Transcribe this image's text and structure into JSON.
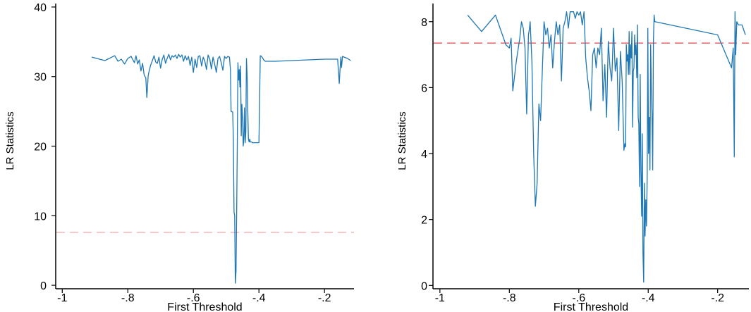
{
  "chart_data": [
    {
      "type": "line",
      "xlabel": "First Threshold",
      "ylabel": "LR Statistics",
      "xlim": [
        -1.02,
        -0.11
      ],
      "ylim": [
        -0.5,
        40.5
      ],
      "xticks": [
        -1,
        -0.8,
        -0.6,
        -0.4,
        -0.2
      ],
      "xtick_labels": [
        "-1",
        "-.8",
        "-.6",
        "-.4",
        "-.2"
      ],
      "yticks": [
        0,
        10,
        20,
        30,
        40
      ],
      "ytick_labels": [
        "0",
        "10",
        "20",
        "30",
        "40"
      ],
      "grid": false,
      "line_color": "#1f77b4",
      "critical_value": 7.6,
      "critical_color": "#f4a6a6",
      "series": [
        {
          "x": [
            -0.91,
            -0.87,
            -0.84,
            -0.83,
            -0.82,
            -0.81,
            -0.8,
            -0.79,
            -0.78,
            -0.775,
            -0.77,
            -0.765,
            -0.76,
            -0.755,
            -0.75,
            -0.745,
            -0.742,
            -0.74,
            -0.738,
            -0.735,
            -0.73,
            -0.725,
            -0.72,
            -0.715,
            -0.71,
            -0.705,
            -0.7,
            -0.695,
            -0.69,
            -0.685,
            -0.68,
            -0.675,
            -0.67,
            -0.665,
            -0.66,
            -0.655,
            -0.65,
            -0.645,
            -0.64,
            -0.635,
            -0.63,
            -0.625,
            -0.62,
            -0.615,
            -0.61,
            -0.605,
            -0.6,
            -0.595,
            -0.59,
            -0.585,
            -0.58,
            -0.575,
            -0.57,
            -0.565,
            -0.56,
            -0.555,
            -0.55,
            -0.545,
            -0.54,
            -0.535,
            -0.53,
            -0.525,
            -0.52,
            -0.515,
            -0.51,
            -0.505,
            -0.5,
            -0.495,
            -0.49,
            -0.487,
            -0.485,
            -0.48,
            -0.478,
            -0.476,
            -0.474,
            -0.472,
            -0.47,
            -0.468,
            -0.466,
            -0.464,
            -0.462,
            -0.46,
            -0.458,
            -0.456,
            -0.454,
            -0.452,
            -0.45,
            -0.448,
            -0.446,
            -0.444,
            -0.442,
            -0.44,
            -0.438,
            -0.436,
            -0.434,
            -0.432,
            -0.43,
            -0.428,
            -0.426,
            -0.424,
            -0.422,
            -0.42,
            -0.418,
            -0.416,
            -0.414,
            -0.412,
            -0.41,
            -0.408,
            -0.406,
            -0.404,
            -0.402,
            -0.4,
            -0.396,
            -0.392,
            -0.388,
            -0.384,
            -0.38,
            -0.37,
            -0.35,
            -0.3,
            -0.25,
            -0.2,
            -0.16,
            -0.155,
            -0.152,
            -0.15,
            -0.148,
            -0.145,
            -0.14,
            -0.13,
            -0.12
          ],
          "y": [
            32.8,
            32.3,
            33.0,
            32.2,
            32.5,
            31.8,
            32.6,
            32.9,
            32.0,
            33.0,
            31.8,
            32.4,
            30.8,
            31.9,
            30.2,
            29.8,
            27.0,
            28.5,
            30.1,
            30.8,
            31.7,
            32.3,
            33.0,
            32.1,
            31.9,
            32.8,
            31.2,
            32.5,
            33.1,
            31.9,
            32.6,
            33.2,
            32.4,
            33.0,
            32.8,
            33.1,
            32.6,
            33.2,
            32.8,
            33.1,
            32.2,
            33.0,
            32.4,
            32.9,
            31.6,
            32.8,
            30.6,
            32.5,
            31.3,
            32.9,
            33.0,
            31.5,
            32.8,
            32.2,
            31.0,
            33.1,
            32.5,
            31.1,
            32.8,
            31.8,
            30.6,
            32.6,
            32.9,
            32.0,
            30.9,
            32.9,
            32.6,
            32.9,
            32.8,
            31.0,
            25.0,
            24.9,
            21.0,
            10.5,
            10.0,
            0.3,
            2.0,
            10.2,
            20.0,
            32.0,
            29.5,
            31.0,
            28.5,
            31.5,
            21.5,
            26.0,
            24.0,
            20.0,
            21.0,
            25.5,
            20.5,
            22.0,
            32.6,
            30.0,
            25.0,
            21.0,
            20.6,
            21.0,
            20.6,
            20.6,
            20.6,
            20.5,
            20.5,
            20.5,
            20.5,
            20.5,
            20.5,
            20.5,
            20.5,
            20.5,
            20.5,
            20.5,
            33.0,
            32.9,
            32.6,
            32.3,
            32.2,
            32.2,
            32.2,
            32.3,
            32.4,
            32.5,
            32.5,
            29.0,
            31.5,
            32.8,
            31.3,
            32.9,
            32.8,
            32.6,
            32.3
          ]
        }
      ]
    },
    {
      "type": "line",
      "xlabel": "First Threshold",
      "ylabel": "LR Statistics",
      "xlim": [
        -1.02,
        -0.11
      ],
      "ylim": [
        -0.1,
        8.55
      ],
      "xticks": [
        -1,
        -0.8,
        -0.6,
        -0.4,
        -0.2
      ],
      "xtick_labels": [
        "-1",
        "-.8",
        "-.6",
        "-.4",
        "-.2"
      ],
      "yticks": [
        0,
        2,
        4,
        6,
        8
      ],
      "ytick_labels": [
        "0",
        "2",
        "4",
        "6",
        "8"
      ],
      "grid": false,
      "line_color": "#1f77b4",
      "critical_value": 7.35,
      "critical_color": "#e05a5a",
      "series": [
        {
          "x": [
            -0.92,
            -0.88,
            -0.84,
            -0.81,
            -0.8,
            -0.795,
            -0.79,
            -0.78,
            -0.77,
            -0.765,
            -0.76,
            -0.755,
            -0.75,
            -0.745,
            -0.742,
            -0.74,
            -0.735,
            -0.73,
            -0.725,
            -0.72,
            -0.715,
            -0.71,
            -0.7,
            -0.695,
            -0.69,
            -0.685,
            -0.68,
            -0.675,
            -0.67,
            -0.665,
            -0.66,
            -0.655,
            -0.65,
            -0.645,
            -0.64,
            -0.635,
            -0.63,
            -0.625,
            -0.62,
            -0.615,
            -0.61,
            -0.605,
            -0.6,
            -0.595,
            -0.59,
            -0.585,
            -0.58,
            -0.575,
            -0.57,
            -0.565,
            -0.56,
            -0.555,
            -0.55,
            -0.545,
            -0.54,
            -0.535,
            -0.53,
            -0.525,
            -0.52,
            -0.515,
            -0.51,
            -0.505,
            -0.5,
            -0.495,
            -0.49,
            -0.485,
            -0.48,
            -0.475,
            -0.47,
            -0.467,
            -0.465,
            -0.463,
            -0.461,
            -0.459,
            -0.457,
            -0.455,
            -0.453,
            -0.451,
            -0.449,
            -0.447,
            -0.445,
            -0.443,
            -0.441,
            -0.439,
            -0.437,
            -0.435,
            -0.433,
            -0.431,
            -0.429,
            -0.427,
            -0.425,
            -0.423,
            -0.421,
            -0.419,
            -0.417,
            -0.415,
            -0.413,
            -0.411,
            -0.409,
            -0.407,
            -0.405,
            -0.403,
            -0.401,
            -0.399,
            -0.397,
            -0.395,
            -0.393,
            -0.391,
            -0.389,
            -0.387,
            -0.385,
            -0.383,
            -0.381,
            -0.2,
            -0.16,
            -0.155,
            -0.152,
            -0.15,
            -0.148,
            -0.145,
            -0.14,
            -0.13,
            -0.12
          ],
          "y": [
            8.2,
            7.7,
            8.2,
            7.3,
            7.2,
            7.5,
            5.9,
            6.8,
            7.5,
            8.0,
            7.8,
            7.2,
            5.2,
            7.6,
            7.8,
            8.0,
            6.8,
            4.0,
            2.4,
            3.1,
            5.5,
            5.0,
            8.0,
            7.6,
            7.8,
            7.2,
            7.6,
            6.6,
            7.4,
            8.0,
            7.6,
            7.9,
            6.2,
            7.8,
            8.0,
            8.3,
            7.8,
            8.3,
            8.3,
            8.3,
            8.1,
            8.3,
            8.2,
            8.3,
            7.9,
            8.3,
            6.9,
            6.3,
            5.9,
            5.3,
            7.0,
            7.2,
            6.6,
            7.2,
            7.0,
            7.8,
            5.6,
            6.7,
            5.1,
            7.4,
            6.6,
            6.2,
            7.8,
            6.5,
            6.9,
            4.7,
            7.1,
            6.2,
            4.1,
            4.3,
            4.2,
            7.3,
            6.8,
            7.0,
            6.4,
            7.7,
            6.4,
            7.3,
            6.9,
            7.7,
            4.8,
            6.5,
            6.6,
            7.6,
            7.0,
            7.3,
            6.3,
            7.9,
            5.1,
            4.9,
            3.0,
            6.4,
            3.5,
            2.1,
            4.6,
            1.0,
            0.1,
            3.1,
            1.5,
            2.6,
            1.8,
            3.3,
            7.8,
            4.0,
            5.1,
            3.5,
            7.3,
            5.9,
            5.2,
            3.5,
            7.4,
            8.2,
            8.0,
            7.6,
            6.6,
            7.2,
            3.9,
            8.3,
            7.0,
            8.0,
            7.9,
            7.9,
            7.6
          ]
        }
      ]
    }
  ]
}
